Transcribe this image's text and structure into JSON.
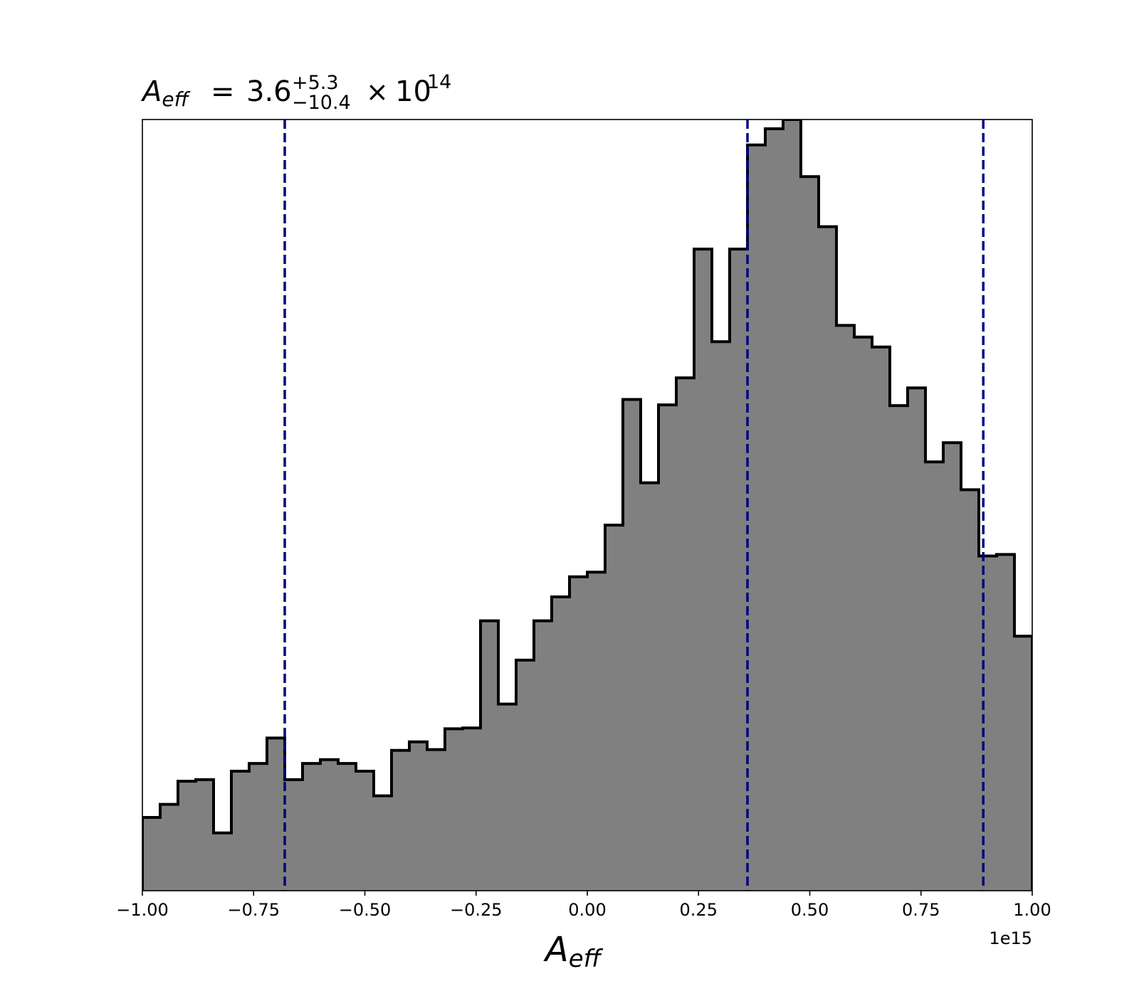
{
  "chart_data": {
    "type": "histogram",
    "title": {
      "symbol": "A",
      "subscript": "eff",
      "equals": "=",
      "value": "3.6",
      "upper": "+5.3",
      "lower": "−10.4",
      "times": "×",
      "base": "10",
      "exponent": "14"
    },
    "xlabel": {
      "symbol": "A",
      "subscript": "eff"
    },
    "offset_label": "1e15",
    "xlim": [
      -1.0,
      1.0
    ],
    "ylim": [
      0,
      1000
    ],
    "show_y_axis_ticks": false,
    "x_ticks": [
      -1.0,
      -0.75,
      -0.5,
      -0.25,
      0.0,
      0.25,
      0.5,
      0.75,
      1.0
    ],
    "x_tick_labels": [
      "−1.00",
      "−0.75",
      "−0.50",
      "−0.25",
      "0.00",
      "0.25",
      "0.50",
      "0.75",
      "1.00"
    ],
    "bins": {
      "start": -1.0,
      "width": 0.04,
      "counts": [
        95,
        112,
        142,
        144,
        75,
        155,
        165,
        198,
        144,
        165,
        170,
        165,
        155,
        123,
        182,
        193,
        183,
        210,
        211,
        350,
        242,
        299,
        350,
        381,
        407,
        413,
        474,
        637,
        529,
        630,
        665,
        832,
        712,
        832,
        967,
        988,
        1000,
        926,
        861,
        733,
        718,
        705,
        629,
        652,
        556,
        581,
        520,
        434,
        436,
        330
      ]
    },
    "fill_color": "#808080",
    "edge_color": "#000000",
    "vlines": {
      "values": [
        -0.68,
        0.36,
        0.89
      ],
      "color": "#00007f",
      "style": "dashed"
    }
  }
}
